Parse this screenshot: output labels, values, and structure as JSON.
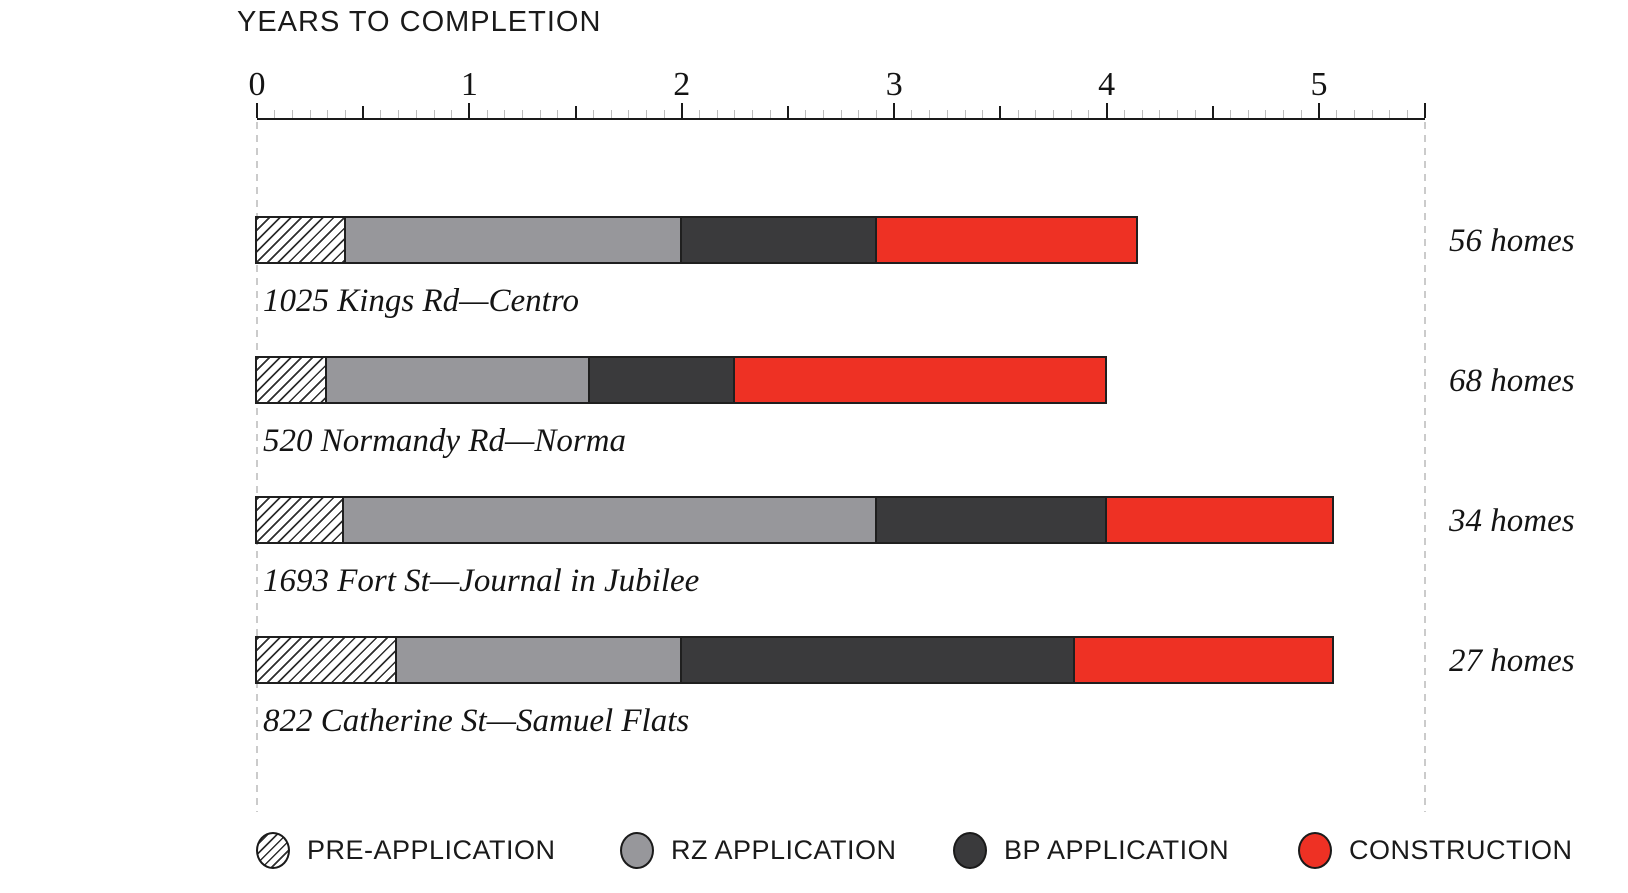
{
  "chart_data": {
    "type": "bar",
    "subtype": "horizontal-stacked-timeline",
    "title": "YEARS TO COMPLETION",
    "x_axis": {
      "title": "YEARS TO COMPLETION",
      "unit": "years",
      "min": 0,
      "max": 5.5,
      "tick_labels": [
        "0",
        "1",
        "2",
        "3",
        "4",
        "5"
      ],
      "major_tick_interval": 1,
      "medium_tick_interval": 0.5,
      "minor_tick_interval_months": 1,
      "grid": "dashed vertical lines at 0 and 5.5 only"
    },
    "phases": [
      {
        "name": "PRE-APPLICATION",
        "fill": "hatch"
      },
      {
        "name": "RZ APPLICATION",
        "fill": "#97979b"
      },
      {
        "name": "BP APPLICATION",
        "fill": "#3a3a3c"
      },
      {
        "name": "CONSTRUCTION",
        "fill": "#ee3124"
      }
    ],
    "projects": [
      {
        "label": "1025 Kings Rd—Centro",
        "homes_label": "56 homes",
        "phase_end_years": [
          0.42,
          2.0,
          2.92,
          4.15
        ],
        "phase_durations_years": [
          0.42,
          1.58,
          0.92,
          1.23
        ]
      },
      {
        "label": "520 Normandy Rd—Norma",
        "homes_label": "68 homes",
        "phase_end_years": [
          0.33,
          1.57,
          2.25,
          4.0
        ],
        "phase_durations_years": [
          0.33,
          1.24,
          0.68,
          1.75
        ]
      },
      {
        "label": "1693 Fort St—Journal in Jubilee",
        "homes_label": "34 homes",
        "phase_end_years": [
          0.41,
          2.92,
          4.0,
          5.07
        ],
        "phase_durations_years": [
          0.41,
          2.51,
          1.08,
          1.07
        ]
      },
      {
        "label": "822 Catherine St—Samuel Flats",
        "homes_label": "27 homes",
        "phase_end_years": [
          0.66,
          2.0,
          3.85,
          5.07
        ],
        "phase_durations_years": [
          0.66,
          1.34,
          1.85,
          1.22
        ]
      }
    ],
    "legend": {
      "position": "bottom",
      "items": [
        {
          "label": "PRE-APPLICATION",
          "swatch": "hatch"
        },
        {
          "label": "RZ APPLICATION",
          "swatch": "#97979b"
        },
        {
          "label": "BP APPLICATION",
          "swatch": "#3a3a3c"
        },
        {
          "label": "CONSTRUCTION",
          "swatch": "#ee3124"
        }
      ]
    },
    "colors": {
      "rz_application_gray": "#97979b",
      "bp_application_dark": "#3a3a3c",
      "construction_red": "#ee3124",
      "bar_outline": "#1f1f1f",
      "hatch_line": "#2e2e2e",
      "dashed_gridline": "#cbcbcb",
      "minor_tick": "#bcbcbc",
      "text": "#141414",
      "background": "#ffffff"
    }
  }
}
